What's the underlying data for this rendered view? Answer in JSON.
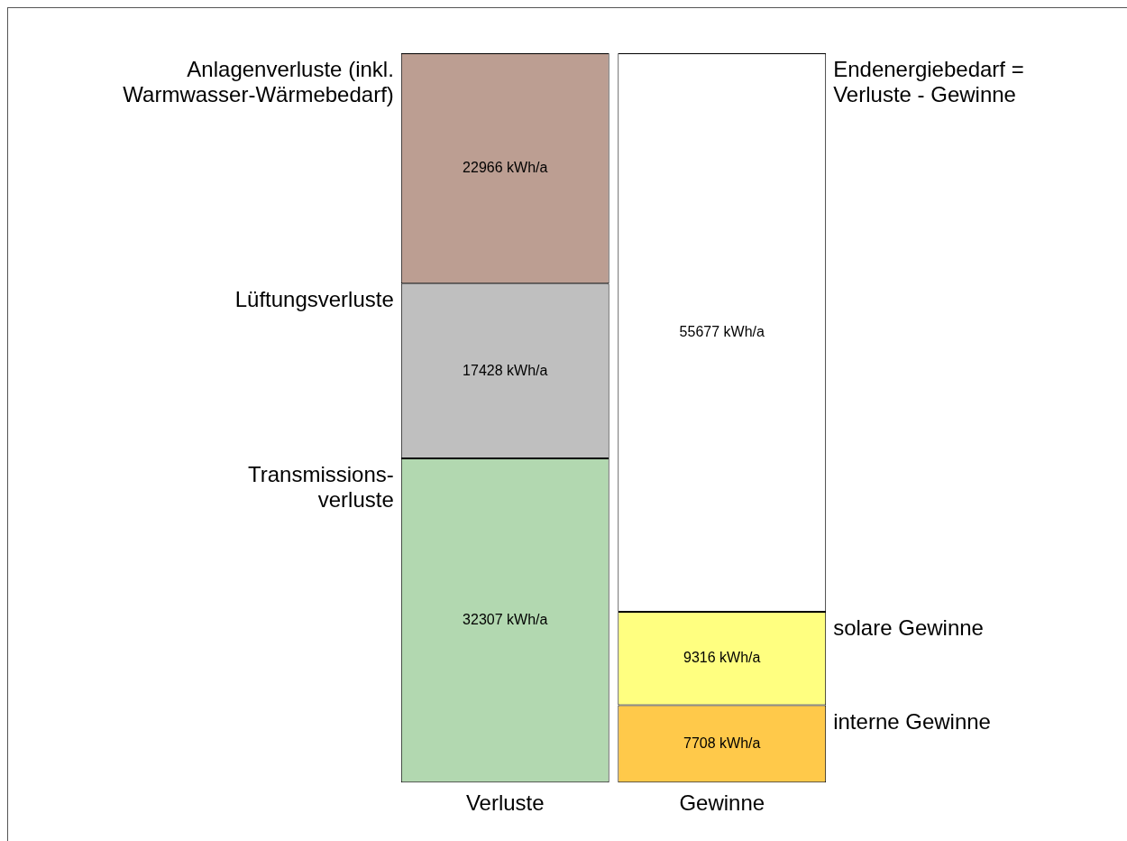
{
  "chart_data": {
    "type": "bar",
    "stacked": true,
    "categories": [
      "Verluste",
      "Gewinne"
    ],
    "legend": false,
    "grid": false,
    "tick_labels": "x",
    "series": [
      {
        "name": "Transmissions-\nverluste",
        "color": "#b2d8b0",
        "values": [
          32307,
          null
        ],
        "value_labels": [
          "32307 kWh/a",
          null
        ]
      },
      {
        "name": "interne Gewinne",
        "color": "#ffc94a",
        "values": [
          null,
          7708
        ],
        "value_labels": [
          null,
          "7708 kWh/a"
        ]
      },
      {
        "name": "Lüftungsverluste",
        "color": "#bfbfbf",
        "values": [
          17428,
          null
        ],
        "value_labels": [
          "17428 kWh/a",
          null
        ]
      },
      {
        "name": "solare Gewinne",
        "color": "#ffff80",
        "values": [
          null,
          9316
        ],
        "value_labels": [
          null,
          "9316 kWh/a"
        ]
      },
      {
        "name": "Anlagenverluste (inkl.\nWarmwasser-Wärmebedarf)",
        "color": "#bc9e92",
        "values": [
          22966,
          null
        ],
        "value_labels": [
          "22966 kWh/a",
          null
        ]
      },
      {
        "name": "Endenergiebedarf =\nVerluste - Gewinne",
        "color": "#ffffff",
        "values": [
          null,
          55677
        ],
        "value_labels": [
          null,
          "55677 kWh/a"
        ]
      }
    ]
  }
}
